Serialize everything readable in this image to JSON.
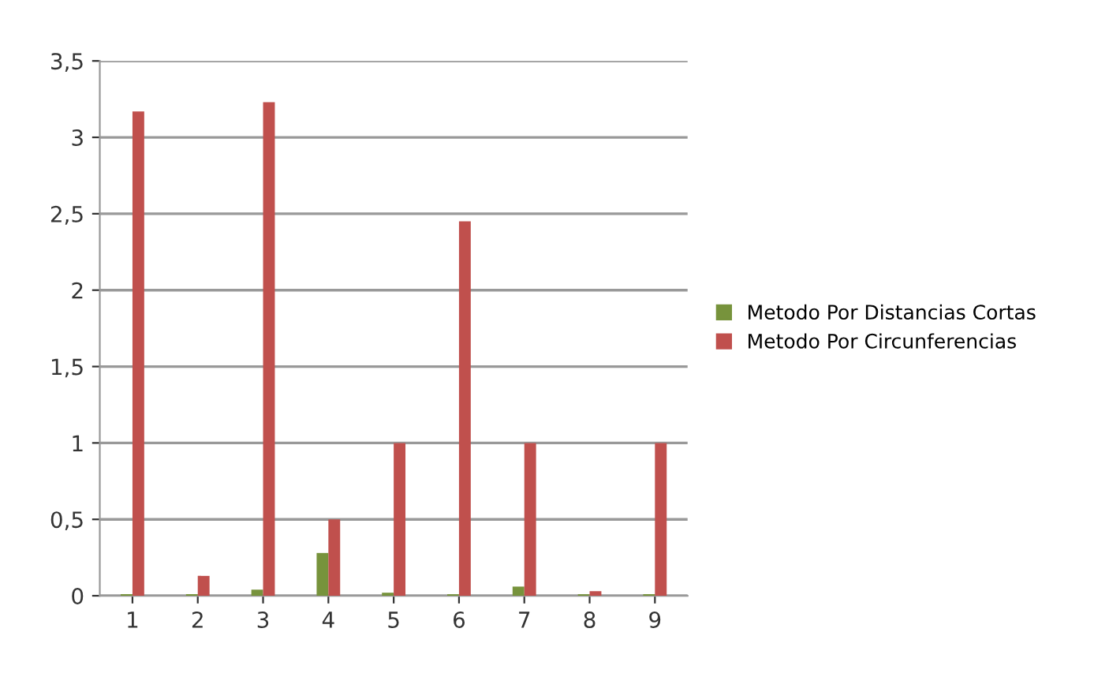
{
  "chart_data": {
    "type": "bar",
    "categories": [
      "1",
      "2",
      "3",
      "4",
      "5",
      "6",
      "7",
      "8",
      "9"
    ],
    "series": [
      {
        "name": "Metodo Por Distancias Cortas",
        "color": "#77933c",
        "values": [
          0.01,
          0.01,
          0.04,
          0.28,
          0.02,
          0.01,
          0.06,
          0.01,
          0.01
        ]
      },
      {
        "name": "Metodo Por Circunferencias",
        "color": "#c0504d",
        "values": [
          3.17,
          0.13,
          3.23,
          0.5,
          1.0,
          2.45,
          1.0,
          0.03,
          1.0
        ]
      }
    ],
    "ylim": [
      0,
      3.5
    ],
    "yticks": [
      {
        "value": 0,
        "label": "0"
      },
      {
        "value": 0.5,
        "label": "0,5"
      },
      {
        "value": 1,
        "label": "1"
      },
      {
        "value": 1.5,
        "label": "1,5"
      },
      {
        "value": 2,
        "label": "2"
      },
      {
        "value": 2.5,
        "label": "2,5"
      },
      {
        "value": 3,
        "label": "3"
      },
      {
        "value": 3.5,
        "label": "3,5"
      }
    ],
    "grid": "y",
    "legend": "right"
  }
}
